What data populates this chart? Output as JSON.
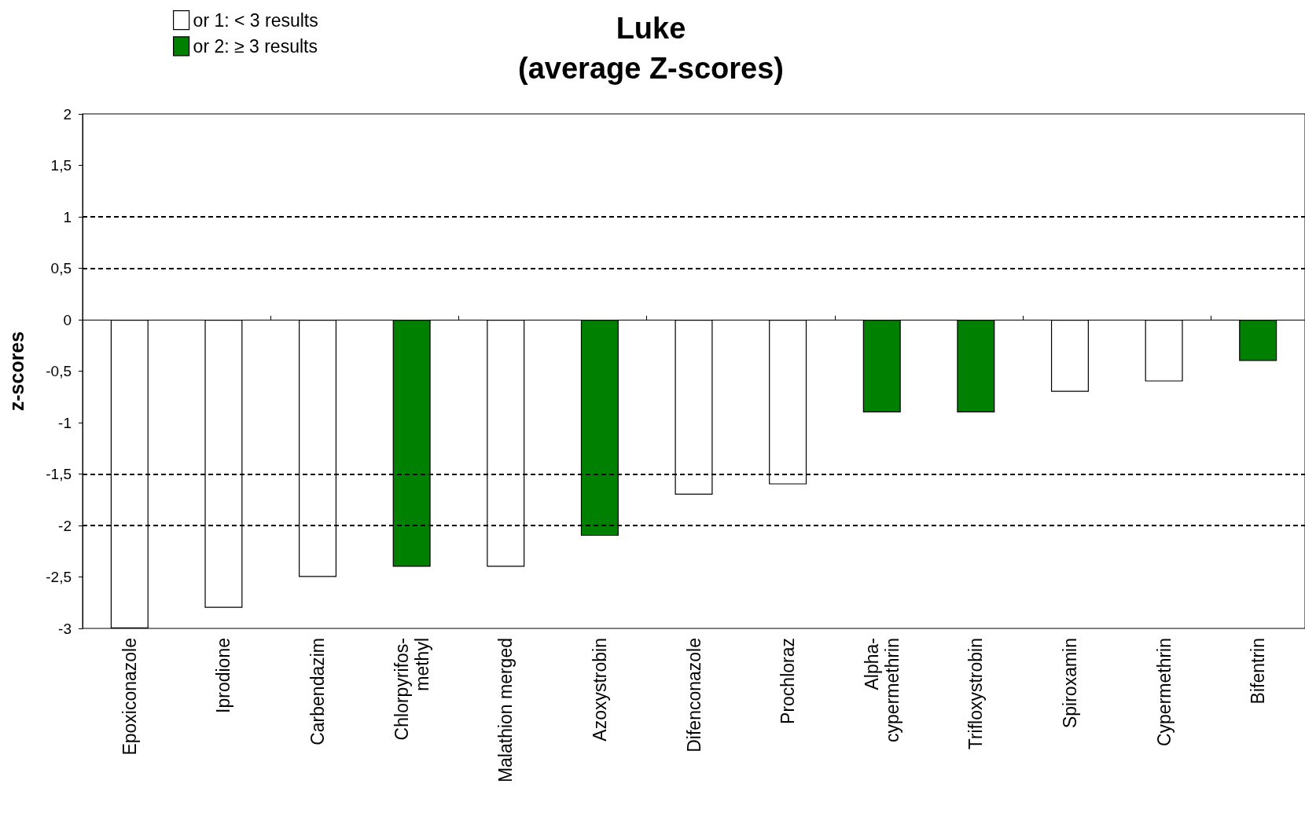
{
  "chart_data": {
    "type": "bar",
    "title": "Luke",
    "subtitle": "(average Z-scores)",
    "ylabel": "z-scores",
    "categories": [
      "Epoxiconazole",
      "Iprodione",
      "Carbendazim",
      "Chlorpyrifos-methyl",
      "Malathion merged",
      "Azoxystrobin",
      "Difenconazole",
      "Prochloraz",
      "Alpha-cypermethrin",
      "Trifloxystrobin",
      "Spiroxamin",
      "Cypermethrin",
      "Bifentrin"
    ],
    "series": [
      {
        "name": "or 1: < 3 results",
        "color": "#ffffff",
        "values": [
          -3,
          -2.8,
          -2.5,
          null,
          -2.4,
          null,
          -1.7,
          -1.6,
          null,
          null,
          -0.7,
          -0.6,
          null
        ]
      },
      {
        "name": "or 2: ≥ 3 results",
        "color": "#008000",
        "values": [
          null,
          null,
          null,
          -2.4,
          null,
          -2.1,
          null,
          null,
          -0.9,
          -0.9,
          null,
          null,
          -0.4
        ]
      }
    ],
    "ylim": [
      -3,
      2
    ],
    "yticks": [
      -3,
      {
        "value": -2.5,
        "label": "-2,5"
      },
      -2,
      {
        "value": -1.5,
        "label": "-1,5"
      },
      -1,
      {
        "value": -0.5,
        "label": "-0,5"
      },
      0,
      {
        "value": 0.5,
        "label": "0,5"
      },
      1,
      {
        "value": 1.5,
        "label": "1,5"
      },
      2
    ],
    "ref_lines": [
      {
        "axis": "y",
        "value": 1,
        "color": "#000000",
        "line_style": "dashed"
      },
      {
        "axis": "y",
        "value": 0.5,
        "color": "#000000",
        "line_style": "dashed"
      },
      {
        "axis": "y",
        "value": -1.5,
        "color": "#000000",
        "line_style": "dashed"
      },
      {
        "axis": "y",
        "value": -2,
        "color": "#000000",
        "line_style": "dashed"
      }
    ],
    "legend": "top left",
    "grid": false
  }
}
